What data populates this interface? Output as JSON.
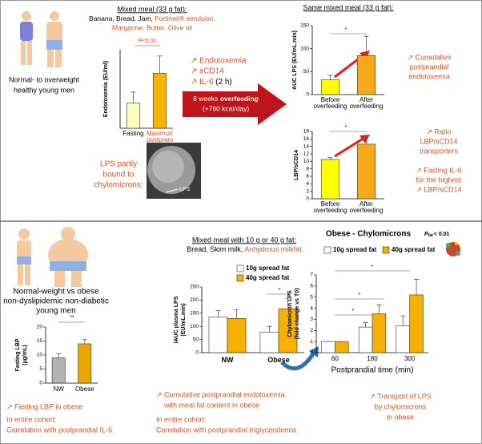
{
  "top": {
    "subjects": [
      "Normal- to overweight",
      "healthy young men"
    ],
    "meal_title": "Mixed meal (33 g fat):",
    "meal_items": [
      "Banana, Bread, Jam,",
      "Fortimel® emulsion,",
      "Margarine, Butter, Olive oil"
    ],
    "effects": [
      "↗ Endotoxemia",
      "↗ sCD14",
      "↗ IL-6",
      "(2 h)"
    ],
    "intervention": [
      "8 weeks",
      "overfeeding",
      "(+760 kcal/day)"
    ],
    "lps_note": [
      "LPS partly",
      "bound to",
      "chylomicrons:"
    ],
    "image_label": "LPS",
    "same_meal_title": "Same mixed meal (33 g fat):",
    "auc_note": [
      "↗ Cumulative",
      "postprandial",
      "endotoxemia"
    ],
    "ratio_note": [
      "↗ Ratio",
      "LBP/sCD14",
      "transporters"
    ],
    "il6_note": [
      "↗ Fasting IL-6",
      "for the highest",
      "↗ LBP/sCD14"
    ]
  },
  "bottom": {
    "subjects": [
      "Normal-weight vs obese",
      "non-dyslipidemic non-diabetic",
      "young men"
    ],
    "lbp_note": [
      "↗ Fasting LBP in obese",
      "In entire cohort:",
      "Correlation with postprandial IL-6"
    ],
    "meal_title": "Mixed meal with 10 g or 40 g fat:",
    "meal_items": [
      "Bread, Skim milk,",
      "Anhydrous milkfat"
    ],
    "auc_note": [
      "↗ Cumulative postprandial endotoxemia",
      "with meal fat content in obese",
      "In entire cohort:",
      "Correlation with postprandial triglyceridemia"
    ],
    "chylo_note": [
      "↗ Transport of LPS",
      "by chylomicrons",
      "in obese"
    ]
  },
  "chart_data": [
    {
      "type": "bar",
      "y_label": "Endotoxemia (EU/ml)",
      "categories": [
        "Fasting",
        "Maximum postprandial"
      ],
      "values": [
        0.16,
        0.35
      ],
      "errors": [
        0.07,
        0.11
      ],
      "colors": [
        "#fffcc0",
        "#f5b400"
      ],
      "ylim": [
        0,
        0.5
      ],
      "significance": [
        "P<0.01"
      ]
    },
    {
      "type": "bar",
      "y_label": "AUC LPS (EU/mL.min)",
      "categories": [
        "Before overfeeding",
        "After overfeeding"
      ],
      "values": [
        32,
        85
      ],
      "errors": [
        10,
        42
      ],
      "colors": [
        "#ffff00",
        "#f7a81b"
      ],
      "ylim": [
        0,
        150
      ],
      "yticks": [
        0,
        50,
        100,
        150
      ],
      "significance": [
        "*"
      ]
    },
    {
      "type": "bar",
      "y_label": "LBP/sCD14",
      "categories": [
        "Before overfeeding",
        "After overfeeding"
      ],
      "values": [
        10.5,
        14.6
      ],
      "errors": [
        0.5,
        2
      ],
      "colors": [
        "#ffff00",
        "#f7a81b"
      ],
      "ylim": [
        0,
        18
      ],
      "yticks": [
        0,
        2,
        4,
        6,
        8,
        10,
        12,
        14,
        16,
        18
      ],
      "significance": [
        "*"
      ]
    },
    {
      "type": "bar",
      "y_label": [
        "Fasting LBP",
        "(µg/mL)"
      ],
      "categories": [
        "NW",
        "Obese"
      ],
      "values": [
        9,
        14
      ],
      "errors": [
        1.5,
        1.5
      ],
      "colors": [
        "#b3b3b3",
        "#e6a800"
      ],
      "ylim": [
        0,
        20
      ],
      "yticks": [
        0,
        5,
        10,
        15,
        20
      ],
      "significance": [
        "**"
      ]
    },
    {
      "type": "bar",
      "y_label": [
        "iAUC plasma LPS",
        "(EU/mL.min)"
      ],
      "categories": [
        "NW",
        "Obese"
      ],
      "series": [
        {
          "name": "10g spread fat",
          "color": "#ffffff",
          "values": [
            135,
            78
          ],
          "errors": [
            25,
            22
          ]
        },
        {
          "name": "40g spread fat",
          "color": "#f5b000",
          "values": [
            130,
            167
          ],
          "errors": [
            33,
            40
          ]
        }
      ],
      "ylim": [
        0,
        250
      ],
      "yticks": [
        0,
        50,
        100,
        150,
        200,
        250
      ],
      "significance": [
        "*"
      ]
    },
    {
      "type": "bar",
      "title": "Obese - Chylomicrons",
      "y_label": [
        "Chylomicron LPS",
        "(fold change vs T0)"
      ],
      "x_label": "Postprandial time (min)",
      "categories": [
        "60",
        "180",
        "300"
      ],
      "series": [
        {
          "name": "10g spread fat",
          "color": "#ffffff",
          "values": [
            1,
            2.3,
            2.4
          ],
          "errors": [
            0,
            0.4,
            0.9
          ]
        },
        {
          "name": "40g spread fat",
          "color": "#f5b000",
          "values": [
            1,
            3.5,
            5.2
          ],
          "errors": [
            0,
            0.8,
            1.4
          ]
        }
      ],
      "ylim": [
        0,
        7
      ],
      "yticks": [
        0,
        1,
        2,
        3,
        4,
        5,
        6,
        7
      ],
      "significance": [
        "*",
        "*",
        "*"
      ],
      "p_value": [
        "P",
        "fat",
        "< 0.01"
      ]
    }
  ]
}
